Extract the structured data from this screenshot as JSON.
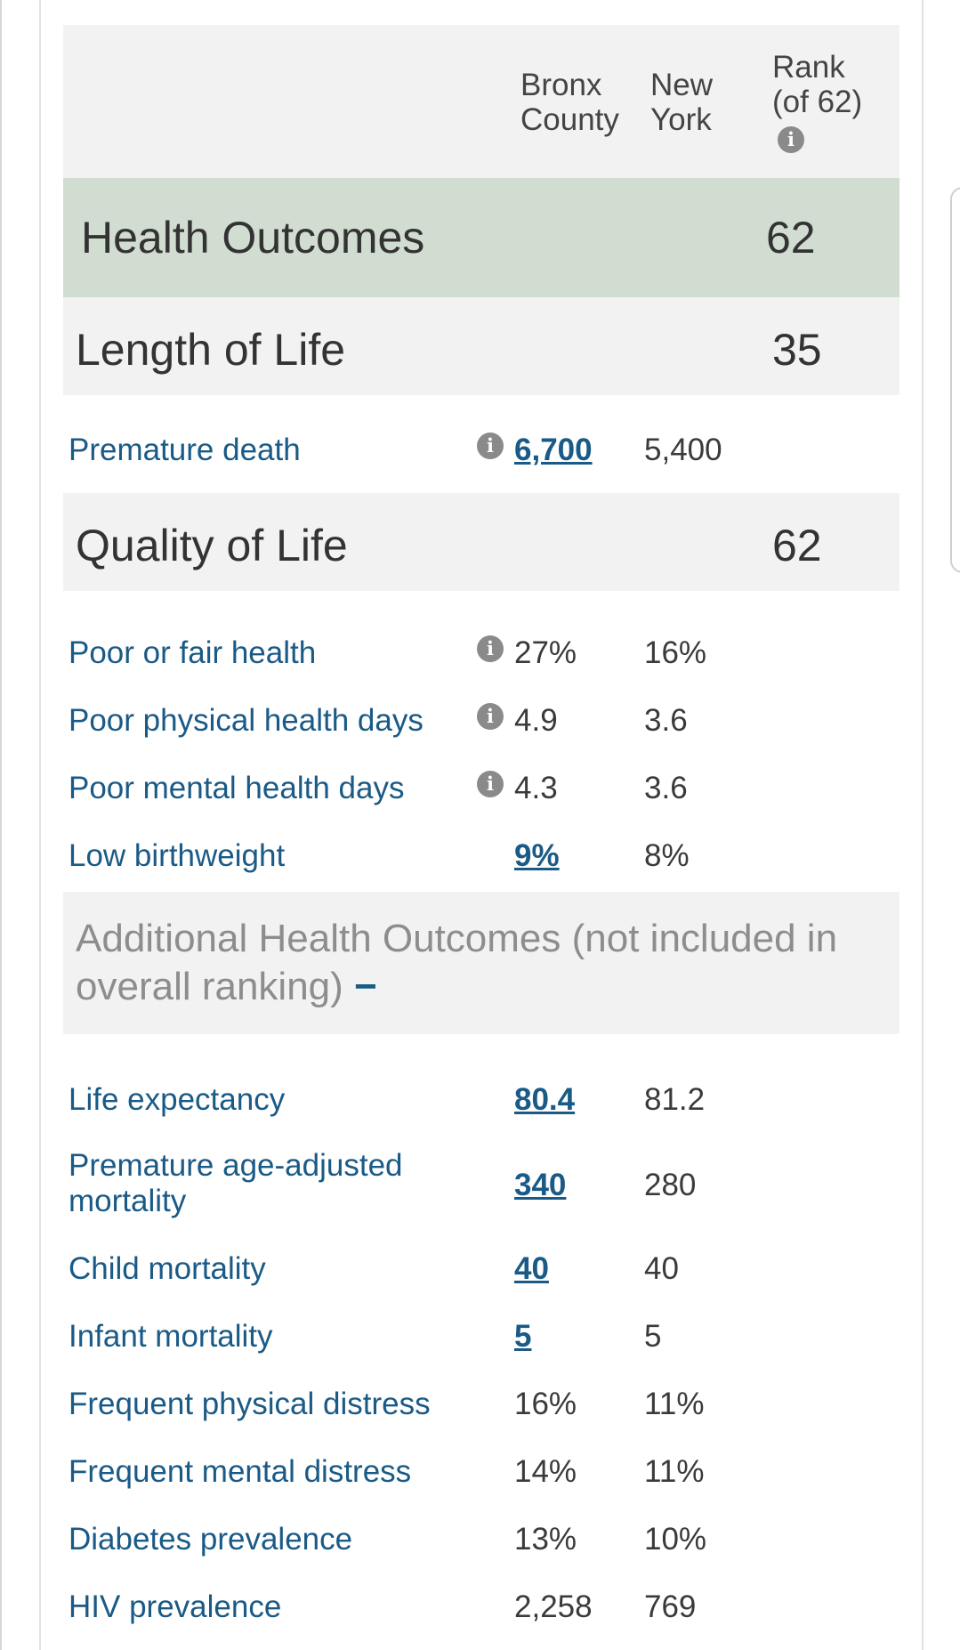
{
  "header": {
    "county_line1": "Bronx",
    "county_line2": "County",
    "state_line1": "New",
    "state_line2": "York",
    "rank_line1": "Rank",
    "rank_line2": "(of 62)"
  },
  "health_outcomes": {
    "label": "Health Outcomes",
    "rank": "62"
  },
  "length_of_life": {
    "label": "Length of Life",
    "rank": "35"
  },
  "quality_of_life": {
    "label": "Quality of Life",
    "rank": "62"
  },
  "additional": {
    "label": "Additional Health Outcomes (not included in overall ranking)",
    "toggle": "−"
  },
  "metrics": {
    "premature_death": {
      "name": "Premature death",
      "county": "6,700",
      "state": "5,400"
    },
    "poor_fair_health": {
      "name": "Poor or fair health",
      "county": "27%",
      "state": "16%"
    },
    "poor_physical_days": {
      "name": "Poor physical health days",
      "county": "4.9",
      "state": "3.6"
    },
    "poor_mental_days": {
      "name": "Poor mental health days",
      "county": "4.3",
      "state": "3.6"
    },
    "low_birthweight": {
      "name": "Low birthweight",
      "county": "9%",
      "state": "8%"
    },
    "life_expectancy": {
      "name": "Life expectancy",
      "county": "80.4",
      "state": "81.2"
    },
    "premature_age_adj_line1": "Premature age-adjusted",
    "premature_age_adj_line2": "mortality",
    "premature_age_adj": {
      "county": "340",
      "state": "280"
    },
    "child_mortality": {
      "name": "Child mortality",
      "county": "40",
      "state": "40"
    },
    "infant_mortality": {
      "name": "Infant mortality",
      "county": "5",
      "state": "5"
    },
    "freq_physical_distress": {
      "name": "Frequent physical distress",
      "county": "16%",
      "state": "11%"
    },
    "freq_mental_distress": {
      "name": "Frequent mental distress",
      "county": "14%",
      "state": "11%"
    },
    "diabetes": {
      "name": "Diabetes prevalence",
      "county": "13%",
      "state": "10%"
    },
    "hiv": {
      "name": "HIV prevalence",
      "county": "2,258",
      "state": "769"
    }
  },
  "icons": {
    "info": "info-icon"
  }
}
